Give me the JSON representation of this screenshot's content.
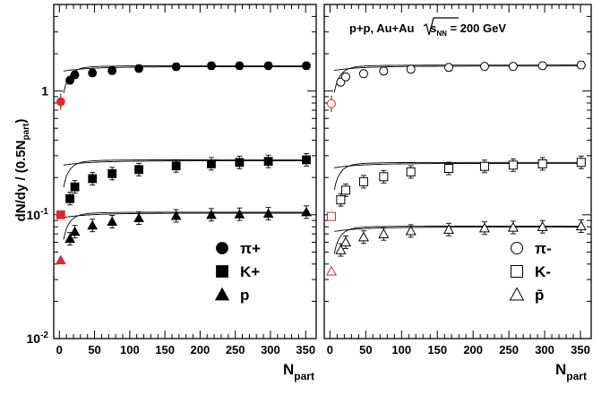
{
  "figure": {
    "ylabel": "dN/dy / (0.5N",
    "ylabel_sub": "part",
    "ylabel_close": ")",
    "xlabel_main": "N",
    "xlabel_sub": "part",
    "annotation_prefix": "p+p, Au+Au ",
    "annotation_s": "s",
    "annotation_s_sub": "NN",
    "annotation_suffix": " = 200 GeV",
    "yticks": [
      {
        "label": "10",
        "exp": "-2",
        "value": 0.01
      },
      {
        "label": "10",
        "exp": "-1",
        "value": 0.1
      },
      {
        "label": "1",
        "exp": "",
        "value": 1
      }
    ],
    "xtick_labels": [
      "0",
      "50",
      "100",
      "150",
      "200",
      "250",
      "300",
      "350"
    ],
    "colors": {
      "data": "#000000",
      "pp": "#e8242b"
    }
  },
  "chart_data": [
    {
      "type": "scatter",
      "panel": "left",
      "y_scale": "log",
      "xlim": [
        -8,
        365
      ],
      "ylim": [
        0.01,
        5
      ],
      "grid": false,
      "legend_position": "bottom-right",
      "series": [
        {
          "name": "π+",
          "marker": "circle-filled",
          "x": [
            15,
            22,
            47,
            75,
            113,
            166,
            216,
            256,
            297,
            351
          ],
          "y": [
            1.22,
            1.35,
            1.4,
            1.46,
            1.52,
            1.57,
            1.6,
            1.6,
            1.6,
            1.6
          ],
          "pp": {
            "x": 2,
            "y": 0.82
          }
        },
        {
          "name": "K+",
          "marker": "square-filled",
          "x": [
            15,
            22,
            47,
            75,
            113,
            166,
            216,
            256,
            297,
            351
          ],
          "y": [
            0.135,
            0.168,
            0.196,
            0.215,
            0.232,
            0.248,
            0.258,
            0.265,
            0.27,
            0.278
          ],
          "pp": {
            "x": 2,
            "y": 0.1
          }
        },
        {
          "name": "p",
          "marker": "triangle-filled",
          "x": [
            15,
            22,
            47,
            75,
            113,
            166,
            216,
            256,
            297,
            351
          ],
          "y": [
            0.064,
            0.073,
            0.082,
            0.088,
            0.094,
            0.098,
            0.1,
            0.101,
            0.102,
            0.105
          ],
          "pp": {
            "x": 2,
            "y": 0.043
          }
        }
      ]
    },
    {
      "type": "scatter",
      "panel": "right",
      "y_scale": "log",
      "xlim": [
        -8,
        365
      ],
      "ylim": [
        0.01,
        5
      ],
      "grid": false,
      "legend_position": "bottom-right",
      "series": [
        {
          "name": "π-",
          "marker": "circle-open",
          "x": [
            15,
            22,
            47,
            75,
            113,
            166,
            216,
            256,
            297,
            351
          ],
          "y": [
            1.18,
            1.3,
            1.38,
            1.45,
            1.5,
            1.55,
            1.58,
            1.58,
            1.6,
            1.62
          ],
          "pp": {
            "x": 2,
            "y": 0.79
          }
        },
        {
          "name": "K-",
          "marker": "square-open",
          "x": [
            15,
            22,
            47,
            75,
            113,
            166,
            216,
            256,
            297,
            351
          ],
          "y": [
            0.132,
            0.158,
            0.185,
            0.203,
            0.222,
            0.237,
            0.246,
            0.252,
            0.258,
            0.265
          ],
          "pp": {
            "x": 2,
            "y": 0.097
          }
        },
        {
          "name": "p̄",
          "marker": "triangle-open",
          "x": [
            15,
            22,
            47,
            75,
            113,
            166,
            216,
            256,
            297,
            351
          ],
          "y": [
            0.052,
            0.06,
            0.066,
            0.07,
            0.074,
            0.076,
            0.078,
            0.079,
            0.08,
            0.081
          ],
          "pp": {
            "x": 2,
            "y": 0.035
          }
        }
      ]
    }
  ]
}
